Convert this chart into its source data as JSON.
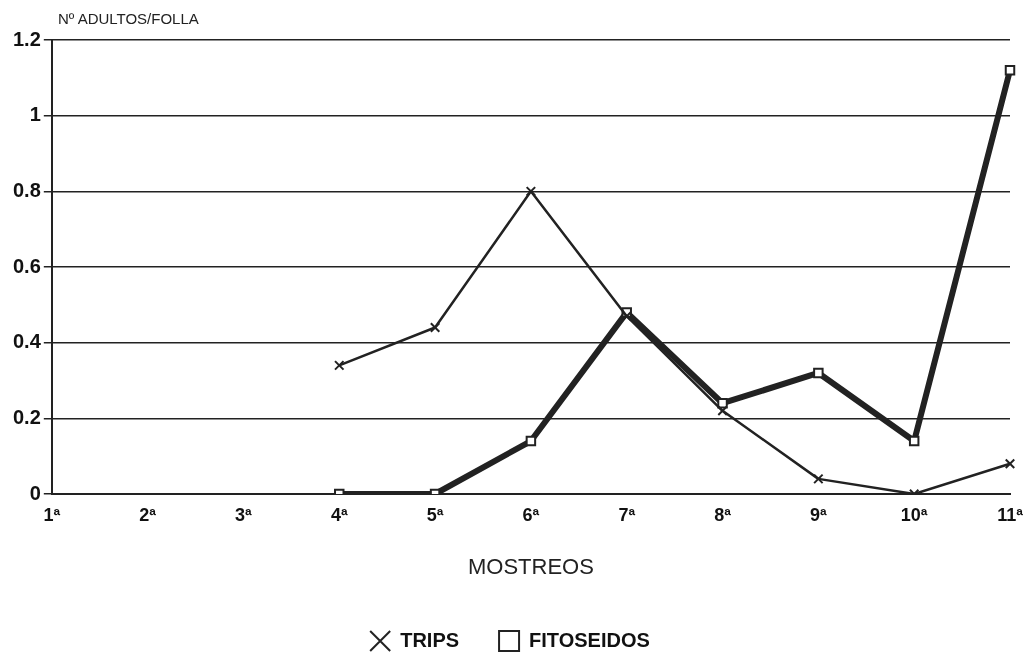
{
  "chart_data": {
    "type": "line",
    "ylabel": "Nº ADULTOS/FOLLA",
    "xlabel": "MOSTREOS",
    "categories": [
      "1ª",
      "2ª",
      "3ª",
      "4ª",
      "5ª",
      "6ª",
      "7ª",
      "8ª",
      "9ª",
      "10ª",
      "11ª"
    ],
    "series": [
      {
        "name": "TRIPS",
        "color": "#222222",
        "marker": "cross",
        "values": [
          null,
          null,
          null,
          0.34,
          0.44,
          0.8,
          0.47,
          0.22,
          0.04,
          0.0,
          0.08
        ]
      },
      {
        "name": "FITOSEIDOS",
        "color": "#222222",
        "marker": "square",
        "values": [
          null,
          null,
          null,
          0,
          0,
          0.14,
          0.48,
          0.24,
          0.32,
          0.14,
          1.12
        ]
      }
    ],
    "ylim": [
      0,
      1.2
    ],
    "yticks": [
      0,
      0.2,
      0.4,
      0.6,
      0.8,
      1,
      1.2
    ],
    "grid": "y",
    "legend": "bottom"
  }
}
